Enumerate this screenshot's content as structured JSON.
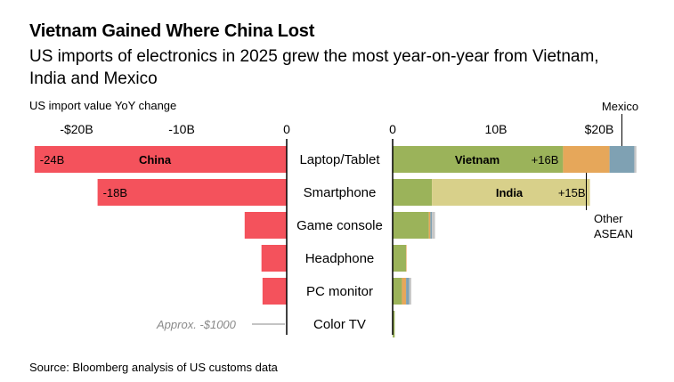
{
  "header": {
    "title": "Vietnam Gained Where China Lost",
    "subtitle": "US imports of electronics in 2025 grew the most year-on-year from Vietnam, India and Mexico",
    "axis_title": "US import value YoY change"
  },
  "footer": {
    "source": "Source: Bloomberg analysis of US customs data"
  },
  "colors": {
    "china": "#f4525c",
    "vietnam": "#9bb35a",
    "india": "#d8d08a",
    "other_asean": "#e6a75a",
    "mexico": "#7fa1b3",
    "other": "#c6c6c6",
    "axis": "#000000",
    "annotation": "#8a8a8a"
  },
  "chart_data": {
    "type": "bar",
    "orientation": "horizontal",
    "layout": "diverging split axis (left: China, right: other countries)",
    "categories": [
      "Laptop/Tablet",
      "Smartphone",
      "Game console",
      "Headphone",
      "PC monitor",
      "Color TV"
    ],
    "left_panel": {
      "series": [
        {
          "name": "China",
          "values": [
            -24,
            -18,
            -4,
            -2.4,
            -2.3,
            -1e-06
          ]
        }
      ],
      "xlim": [
        -26,
        0
      ],
      "ticks": [
        -20,
        -10,
        0
      ],
      "tick_labels": [
        "-$20B",
        "-10B",
        "0"
      ],
      "bar_labels": [
        "-24B",
        "-18B",
        "",
        "",
        "",
        ""
      ],
      "series_label": "China",
      "annotation": "Approx. -$1000"
    },
    "right_panel": {
      "series": [
        {
          "name": "Vietnam",
          "values": [
            16.5,
            3.8,
            3.5,
            1.3,
            0.9,
            0.2
          ]
        },
        {
          "name": "India",
          "values": [
            0,
            15.3,
            0,
            0,
            0,
            0
          ]
        },
        {
          "name": "Other ASEAN",
          "values": [
            4.5,
            0,
            0.15,
            0.05,
            0.4,
            0
          ]
        },
        {
          "name": "Mexico",
          "values": [
            2.4,
            0,
            0.15,
            0,
            0.3,
            0
          ]
        },
        {
          "name": "Other",
          "values": [
            0.2,
            0,
            0.3,
            0,
            0.2,
            0
          ]
        }
      ],
      "xlim": [
        0,
        24
      ],
      "ticks": [
        0,
        10,
        20
      ],
      "tick_labels": [
        "0",
        "10B",
        "$20B"
      ],
      "annotations": {
        "vietnam": "Vietnam",
        "vietnam_value": "+16B",
        "india": "India",
        "india_value": "+15B",
        "mexico": "Mexico",
        "other_asean": "Other ASEAN"
      }
    },
    "title": "Vietnam Gained Where China Lost",
    "xlabel": "US import value YoY change",
    "ylabel": ""
  }
}
